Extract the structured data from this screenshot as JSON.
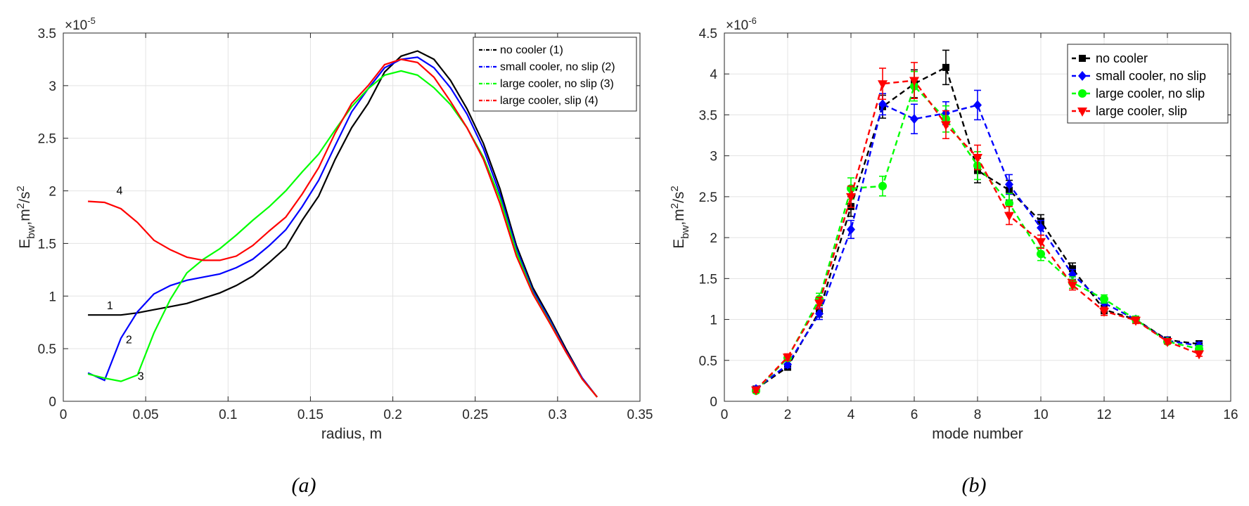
{
  "chart_data": [
    {
      "type": "line",
      "panel_caption": "(a)",
      "xlabel": "radius, m",
      "ylabel_main": "E",
      "ylabel_sub": "bw",
      "ylabel_unit": ",m",
      "ylabel_unit_sup": "2",
      "ylabel_unit2": "/s",
      "ylabel_unit2_sup": "2",
      "y_exponent_base": "×10",
      "y_exponent": "-5",
      "xlim": [
        0,
        0.35
      ],
      "ylim": [
        0,
        3.5
      ],
      "x_ticks": [
        "0",
        "0.05",
        "0.1",
        "0.15",
        "0.2",
        "0.25",
        "0.3",
        "0.35"
      ],
      "y_ticks": [
        "0",
        "0.5",
        "1",
        "1.5",
        "2",
        "2.5",
        "3",
        "3.5"
      ],
      "grid": true,
      "legend_position": "top-right",
      "series": [
        {
          "name": "no cooler (1)",
          "color": "#000000",
          "curve_label": "1",
          "points": [
            [
              0.015,
              0.82
            ],
            [
              0.025,
              0.82
            ],
            [
              0.035,
              0.82
            ],
            [
              0.045,
              0.84
            ],
            [
              0.055,
              0.87
            ],
            [
              0.065,
              0.9
            ],
            [
              0.075,
              0.93
            ],
            [
              0.085,
              0.98
            ],
            [
              0.095,
              1.03
            ],
            [
              0.105,
              1.1
            ],
            [
              0.115,
              1.19
            ],
            [
              0.125,
              1.32
            ],
            [
              0.135,
              1.46
            ],
            [
              0.145,
              1.72
            ],
            [
              0.155,
              1.95
            ],
            [
              0.165,
              2.3
            ],
            [
              0.175,
              2.6
            ],
            [
              0.185,
              2.83
            ],
            [
              0.195,
              3.13
            ],
            [
              0.205,
              3.28
            ],
            [
              0.215,
              3.33
            ],
            [
              0.225,
              3.25
            ],
            [
              0.235,
              3.05
            ],
            [
              0.245,
              2.78
            ],
            [
              0.255,
              2.45
            ],
            [
              0.265,
              2.02
            ],
            [
              0.275,
              1.48
            ],
            [
              0.285,
              1.08
            ],
            [
              0.295,
              0.8
            ],
            [
              0.305,
              0.5
            ],
            [
              0.315,
              0.22
            ],
            [
              0.324,
              0.04
            ]
          ]
        },
        {
          "name": "small cooler, no slip (2)",
          "color": "#0000ff",
          "curve_label": "2",
          "points": [
            [
              0.015,
              0.27
            ],
            [
              0.025,
              0.2
            ],
            [
              0.035,
              0.6
            ],
            [
              0.045,
              0.85
            ],
            [
              0.055,
              1.02
            ],
            [
              0.065,
              1.1
            ],
            [
              0.075,
              1.15
            ],
            [
              0.085,
              1.18
            ],
            [
              0.095,
              1.21
            ],
            [
              0.105,
              1.27
            ],
            [
              0.115,
              1.35
            ],
            [
              0.125,
              1.48
            ],
            [
              0.135,
              1.63
            ],
            [
              0.145,
              1.85
            ],
            [
              0.155,
              2.1
            ],
            [
              0.165,
              2.43
            ],
            [
              0.175,
              2.75
            ],
            [
              0.185,
              2.97
            ],
            [
              0.195,
              3.17
            ],
            [
              0.205,
              3.25
            ],
            [
              0.215,
              3.27
            ],
            [
              0.225,
              3.17
            ],
            [
              0.235,
              2.98
            ],
            [
              0.245,
              2.73
            ],
            [
              0.255,
              2.4
            ],
            [
              0.265,
              1.97
            ],
            [
              0.275,
              1.45
            ],
            [
              0.285,
              1.05
            ],
            [
              0.295,
              0.78
            ],
            [
              0.305,
              0.48
            ],
            [
              0.315,
              0.22
            ],
            [
              0.324,
              0.04
            ]
          ]
        },
        {
          "name": "large cooler, no slip (3)",
          "color": "#00ff00",
          "curve_label": "3",
          "points": [
            [
              0.015,
              0.26
            ],
            [
              0.025,
              0.22
            ],
            [
              0.035,
              0.19
            ],
            [
              0.045,
              0.25
            ],
            [
              0.055,
              0.65
            ],
            [
              0.065,
              0.97
            ],
            [
              0.075,
              1.22
            ],
            [
              0.085,
              1.35
            ],
            [
              0.095,
              1.45
            ],
            [
              0.105,
              1.58
            ],
            [
              0.115,
              1.72
            ],
            [
              0.125,
              1.85
            ],
            [
              0.135,
              2.0
            ],
            [
              0.145,
              2.18
            ],
            [
              0.155,
              2.35
            ],
            [
              0.165,
              2.58
            ],
            [
              0.175,
              2.8
            ],
            [
              0.185,
              2.97
            ],
            [
              0.195,
              3.1
            ],
            [
              0.205,
              3.14
            ],
            [
              0.215,
              3.1
            ],
            [
              0.225,
              2.98
            ],
            [
              0.235,
              2.82
            ],
            [
              0.245,
              2.6
            ],
            [
              0.255,
              2.32
            ],
            [
              0.265,
              1.93
            ],
            [
              0.275,
              1.42
            ],
            [
              0.285,
              1.03
            ],
            [
              0.295,
              0.76
            ],
            [
              0.305,
              0.47
            ],
            [
              0.315,
              0.21
            ],
            [
              0.324,
              0.04
            ]
          ]
        },
        {
          "name": "large cooler, slip (4)",
          "color": "#ff0000",
          "curve_label": "4",
          "points": [
            [
              0.015,
              1.9
            ],
            [
              0.025,
              1.89
            ],
            [
              0.035,
              1.83
            ],
            [
              0.045,
              1.7
            ],
            [
              0.055,
              1.53
            ],
            [
              0.065,
              1.44
            ],
            [
              0.075,
              1.37
            ],
            [
              0.085,
              1.34
            ],
            [
              0.095,
              1.34
            ],
            [
              0.105,
              1.38
            ],
            [
              0.115,
              1.48
            ],
            [
              0.125,
              1.62
            ],
            [
              0.135,
              1.75
            ],
            [
              0.145,
              1.97
            ],
            [
              0.155,
              2.22
            ],
            [
              0.165,
              2.55
            ],
            [
              0.175,
              2.83
            ],
            [
              0.185,
              3.0
            ],
            [
              0.195,
              3.2
            ],
            [
              0.205,
              3.25
            ],
            [
              0.215,
              3.22
            ],
            [
              0.225,
              3.08
            ],
            [
              0.235,
              2.85
            ],
            [
              0.245,
              2.6
            ],
            [
              0.255,
              2.3
            ],
            [
              0.265,
              1.88
            ],
            [
              0.275,
              1.38
            ],
            [
              0.285,
              1.02
            ],
            [
              0.295,
              0.75
            ],
            [
              0.305,
              0.47
            ],
            [
              0.315,
              0.21
            ],
            [
              0.324,
              0.04
            ]
          ]
        }
      ]
    },
    {
      "type": "line",
      "panel_caption": "(b)",
      "xlabel": "mode number",
      "ylabel_main": "E",
      "ylabel_sub": "bw",
      "ylabel_unit": ",m",
      "ylabel_unit_sup": "2",
      "ylabel_unit2": "/s",
      "ylabel_unit2_sup": "2",
      "y_exponent_base": "×10",
      "y_exponent": "-6",
      "xlim": [
        0,
        16
      ],
      "ylim": [
        0,
        4.5
      ],
      "x_ticks": [
        "0",
        "2",
        "4",
        "6",
        "8",
        "10",
        "12",
        "14",
        "16"
      ],
      "y_ticks": [
        "0",
        "0.5",
        "1",
        "1.5",
        "2",
        "2.5",
        "3",
        "3.5",
        "4",
        "4.5"
      ],
      "grid": true,
      "legend_position": "top-right",
      "x": [
        1,
        2,
        3,
        4,
        5,
        6,
        7,
        8,
        9,
        10,
        11,
        12,
        13,
        14,
        15
      ],
      "series": [
        {
          "name": "no cooler",
          "color": "#000000",
          "marker": "square",
          "values": [
            0.15,
            0.42,
            1.1,
            2.38,
            3.6,
            3.88,
            4.08,
            2.82,
            2.58,
            2.2,
            1.62,
            1.12,
            1.0,
            0.75,
            0.7
          ],
          "errors": [
            0.03,
            0.04,
            0.07,
            0.12,
            0.14,
            0.17,
            0.21,
            0.15,
            0.12,
            0.08,
            0.07,
            0.05,
            0.04,
            0.03,
            0.04
          ]
        },
        {
          "name": "small cooler, no slip",
          "color": "#0000ff",
          "marker": "diamond",
          "values": [
            0.15,
            0.45,
            1.07,
            2.1,
            3.63,
            3.45,
            3.52,
            3.62,
            2.65,
            2.12,
            1.55,
            1.2,
            1.0,
            0.74,
            0.68
          ],
          "errors": [
            0.03,
            0.04,
            0.07,
            0.11,
            0.13,
            0.18,
            0.14,
            0.18,
            0.12,
            0.09,
            0.06,
            0.05,
            0.04,
            0.03,
            0.04
          ]
        },
        {
          "name": "large cooler, no slip",
          "color": "#00ff00",
          "marker": "circle",
          "values": [
            0.13,
            0.53,
            1.25,
            2.6,
            2.63,
            3.85,
            3.45,
            2.88,
            2.42,
            1.8,
            1.45,
            1.25,
            1.0,
            0.73,
            0.64
          ],
          "errors": [
            0.03,
            0.04,
            0.07,
            0.13,
            0.12,
            0.18,
            0.16,
            0.17,
            0.12,
            0.08,
            0.07,
            0.05,
            0.04,
            0.03,
            0.04
          ]
        },
        {
          "name": "large cooler, slip",
          "color": "#ff0000",
          "marker": "triangle-down",
          "values": [
            0.14,
            0.54,
            1.2,
            2.5,
            3.88,
            3.92,
            3.38,
            2.98,
            2.27,
            1.95,
            1.42,
            1.1,
            0.99,
            0.73,
            0.58
          ],
          "errors": [
            0.03,
            0.04,
            0.07,
            0.13,
            0.19,
            0.22,
            0.17,
            0.15,
            0.11,
            0.08,
            0.06,
            0.05,
            0.04,
            0.03,
            0.03
          ]
        }
      ]
    }
  ]
}
